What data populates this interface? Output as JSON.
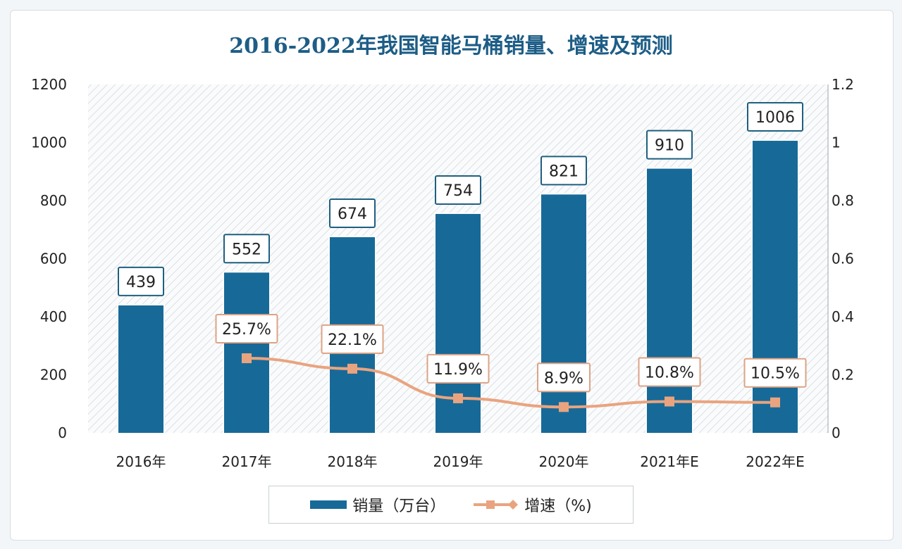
{
  "chart_data": {
    "type": "bar",
    "title": "2016-2022年我国智能马桶销量、增速及预测",
    "categories": [
      "2016年",
      "2017年",
      "2018年",
      "2019年",
      "2020年",
      "2021年E",
      "2022年E"
    ],
    "series": [
      {
        "name": "销量（万台）",
        "type": "bar",
        "axis": "left",
        "values": [
          439,
          552,
          674,
          754,
          821,
          910,
          1006
        ],
        "labels": [
          "439",
          "552",
          "674",
          "754",
          "821",
          "910",
          "1006"
        ]
      },
      {
        "name": "增速（%)",
        "type": "line",
        "axis": "right",
        "values": [
          null,
          0.257,
          0.221,
          0.119,
          0.089,
          0.108,
          0.105
        ],
        "labels": [
          "",
          "25.7%",
          "22.1%",
          "11.9%",
          "8.9%",
          "10.8%",
          "10.5%"
        ]
      }
    ],
    "y_left": {
      "range": [
        0,
        1200
      ],
      "ticks": [
        "0",
        "200",
        "400",
        "600",
        "800",
        "1000",
        "1200"
      ]
    },
    "y_right": {
      "range": [
        0,
        1.2
      ],
      "ticks": [
        "0",
        "0.2",
        "0.4",
        "0.6",
        "0.8",
        "1",
        "1.2"
      ]
    },
    "legend": "bottom",
    "colors": {
      "bar": "#176a98",
      "line": "#e9a47f",
      "title": "#1d5d86"
    }
  }
}
